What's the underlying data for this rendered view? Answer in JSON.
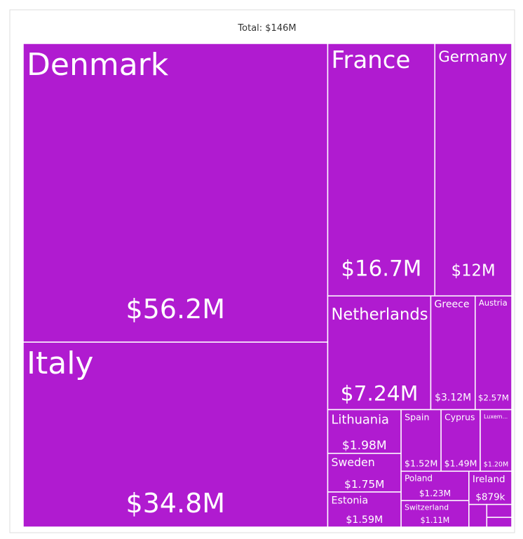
{
  "chart_data": {
    "type": "treemap",
    "title": "Total: $146M",
    "color": "#b01bd0",
    "categories": [
      "Denmark",
      "Italy",
      "France",
      "Germany",
      "Netherlands",
      "Greece",
      "Austria",
      "Lithuania",
      "Sweden",
      "Estonia",
      "Spain",
      "Cyprus",
      "Luxem...",
      "Poland",
      "Switzerland",
      "Ireland",
      null,
      null,
      null
    ],
    "values": [
      56.2,
      34.8,
      16.7,
      12,
      7.24,
      3.12,
      2.57,
      1.98,
      1.75,
      1.59,
      1.52,
      1.49,
      1.2,
      1.23,
      1.11,
      0.879,
      0.25,
      0.2,
      0.15
    ],
    "value_labels": [
      "$56.2M",
      "$34.8M",
      "$16.7M",
      "$12M",
      "$7.24M",
      "$3.12M",
      "$2.57M",
      "$1.98M",
      "$1.75M",
      "$1.59M",
      "$1.52M",
      "$1.49M",
      "$1.20M",
      "$1.23M",
      "$1.11M",
      "$879k",
      null,
      null,
      null
    ]
  }
}
